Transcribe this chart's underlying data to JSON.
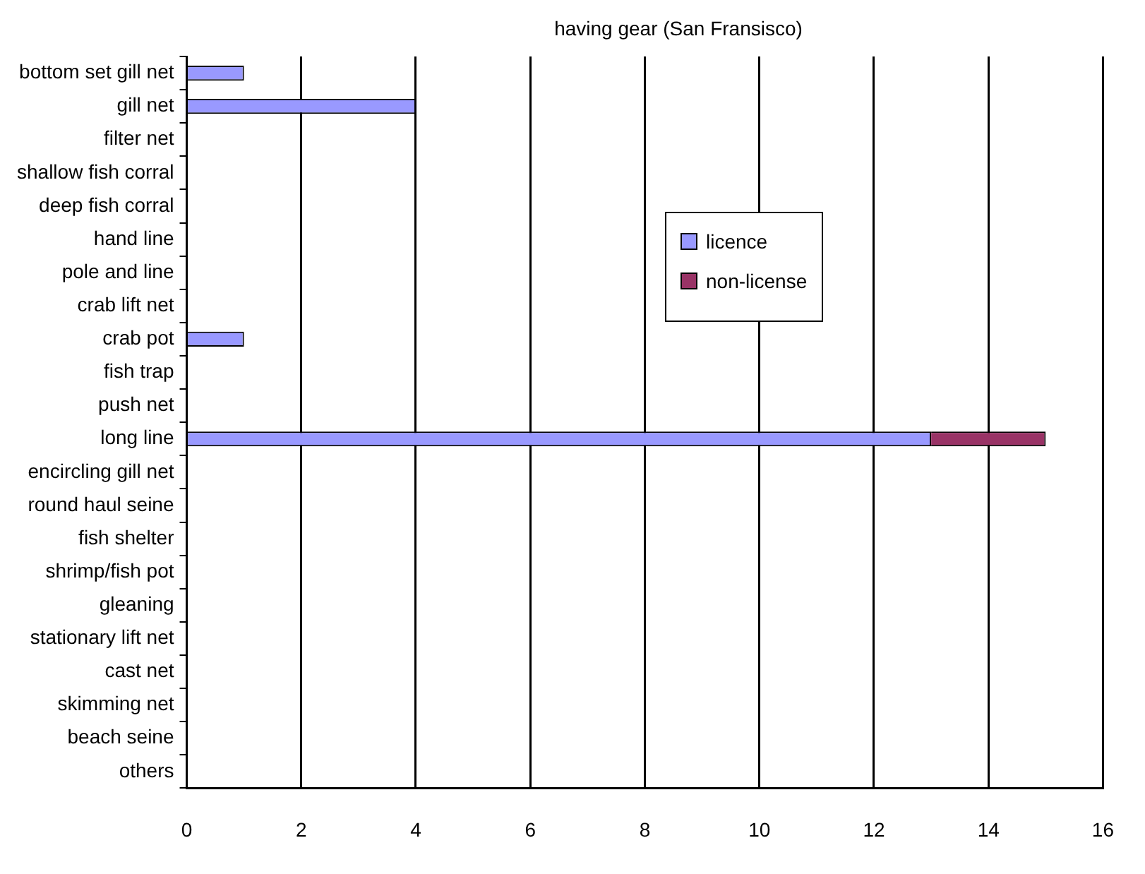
{
  "chart_data": {
    "type": "bar",
    "orientation": "horizontal",
    "stacked": true,
    "title": "having gear (San Fransisco)",
    "categories": [
      "bottom set gill net",
      "gill net",
      "filter net",
      "shallow fish corral",
      "deep fish corral",
      "hand line",
      "pole and line",
      "crab lift net",
      "crab pot",
      "fish trap",
      "push net",
      "long line",
      "encircling gill net",
      "round haul seine",
      "fish shelter",
      "shrimp/fish pot",
      "gleaning",
      "stationary lift net",
      "cast net",
      "skimming net",
      "beach seine",
      "others"
    ],
    "series": [
      {
        "name": "licence",
        "color": "#9999ff",
        "values": [
          1,
          4,
          0,
          0,
          0,
          0,
          0,
          0,
          1,
          0,
          0,
          13,
          0,
          0,
          0,
          0,
          0,
          0,
          0,
          0,
          0,
          0
        ]
      },
      {
        "name": "non-license",
        "color": "#993366",
        "values": [
          0,
          0,
          0,
          0,
          0,
          0,
          0,
          0,
          0,
          0,
          0,
          2,
          0,
          0,
          0,
          0,
          0,
          0,
          0,
          0,
          0,
          0
        ]
      }
    ],
    "xlim": [
      0,
      16
    ],
    "xticks": [
      0,
      2,
      4,
      6,
      8,
      10,
      12,
      14,
      16
    ],
    "grid": "x",
    "legend": "top right"
  }
}
